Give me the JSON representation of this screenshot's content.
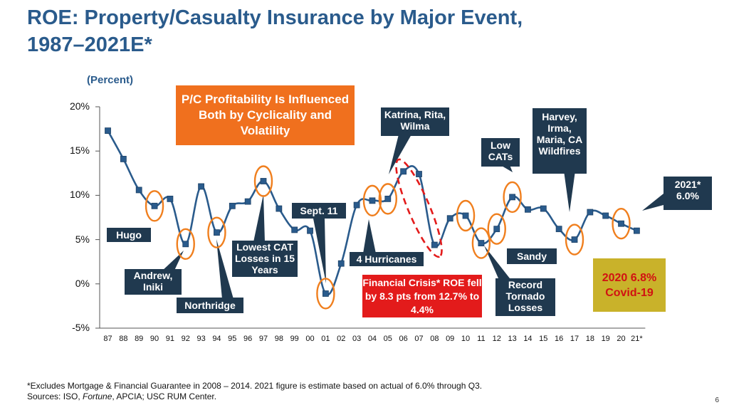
{
  "header": {
    "title_line1": "ROE: Property/Casualty Insurance by Major Event,",
    "title_line2": "1987–2021E*",
    "unit": "(Percent)"
  },
  "callouts": {
    "main": "P/C Profitability Is Influenced Both by Cyclicality and Volatility",
    "hugo": "Hugo",
    "andrew": "Andrew, Iniki",
    "northridge": "Northridge",
    "lowest_cat": "Lowest CAT Losses in 15 Years",
    "sept11": "Sept. 11",
    "four_hurricanes": "4 Hurricanes",
    "katrina": "Katrina, Rita, Wilma",
    "financial_crisis": "Financial Crisis* ROE fell by 8.3 pts from 12.7% to 4.4%",
    "low_cats": "Low CATs",
    "sandy": "Sandy",
    "record_tornado": "Record Tornado Losses",
    "harvey": "Harvey, Irma, Maria, CA Wildfires",
    "est_2021": "2021* 6.0%",
    "covid": "2020 6.8% Covid-19"
  },
  "colors": {
    "line": "#2a5b8c",
    "marker": "#2a5b8c",
    "circle": "#f07f1e",
    "dashed": "#e31b1b",
    "navy": "#20394f",
    "orange": "#f0701e",
    "red": "#e31b1b",
    "gold": "#c9b22a",
    "title": "#2a5b8c"
  },
  "chart_data": {
    "type": "line",
    "title": "ROE: Property/Casualty Insurance by Major Event, 1987–2021E*",
    "ylabel": "Percent",
    "xlabel": "",
    "ylim": [
      -5,
      20
    ],
    "yticks": [
      20,
      15,
      10,
      5,
      0,
      -5
    ],
    "ytick_labels": [
      "20%",
      "15%",
      "10%",
      "5%",
      "0%",
      "-5%"
    ],
    "categories": [
      "87",
      "88",
      "89",
      "90",
      "91",
      "92",
      "93",
      "94",
      "95",
      "96",
      "97",
      "98",
      "99",
      "00",
      "01",
      "02",
      "03",
      "04",
      "05",
      "06",
      "07",
      "08",
      "09",
      "10",
      "11",
      "12",
      "13",
      "14",
      "15",
      "16",
      "17",
      "18",
      "19",
      "20",
      "21*"
    ],
    "values": [
      17.3,
      14.1,
      10.6,
      8.8,
      9.6,
      4.5,
      11.0,
      5.8,
      8.8,
      9.3,
      11.6,
      8.5,
      6.1,
      6.0,
      -1.1,
      2.3,
      8.9,
      9.4,
      9.6,
      12.7,
      12.4,
      4.4,
      7.4,
      7.7,
      4.6,
      6.2,
      9.8,
      8.4,
      8.5,
      6.2,
      5.0,
      8.1,
      7.7,
      6.8,
      6.0
    ],
    "highlighted": [
      "90",
      "92",
      "94",
      "97",
      "01",
      "04",
      "05",
      "10",
      "11",
      "12",
      "13",
      "17",
      "20"
    ],
    "highlight_dashed": [
      "06",
      "07",
      "08"
    ]
  },
  "footnote": {
    "line1": "*Excludes Mortgage & Financial Guarantee in 2008 – 2014. 2021 figure is estimate based on actual of 6.0% through Q3.",
    "line2_prefix": "Sources: ISO, ",
    "line2_italic": "Fortune",
    "line2_suffix": ", APCIA; USC RUM Center."
  },
  "page_number": "6"
}
